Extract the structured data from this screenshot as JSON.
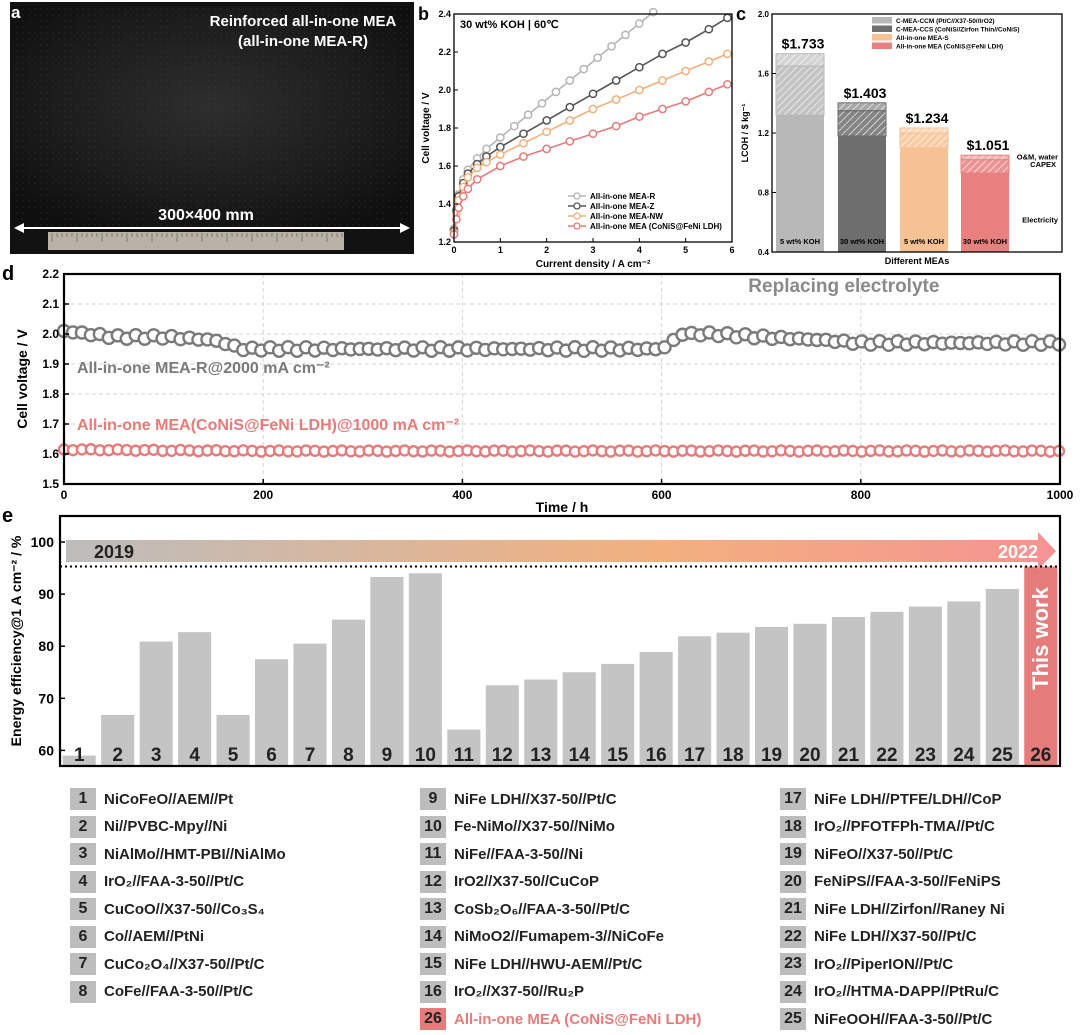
{
  "panel_labels": {
    "a": "a",
    "b": "b",
    "c": "c",
    "d": "d",
    "e": "e"
  },
  "panel_a": {
    "title_line1": "Reinforced all-in-one MEA",
    "title_line2": "(all-in-one MEA-R)",
    "dimension": "300×400 mm",
    "colors": {
      "background": "#1b1b1b",
      "ruler": "#b9b3a6"
    }
  },
  "chart_data": [
    {
      "panel": "b",
      "type": "line",
      "title": "30 wt% KOH | 60℃",
      "xlabel": "Current density / A cm⁻²",
      "ylabel": "Cell voltage / V",
      "xlim": [
        0,
        6
      ],
      "ylim": [
        1.2,
        2.4
      ],
      "xticks": [
        0,
        1,
        2,
        3,
        4,
        5,
        6
      ],
      "yticks": [
        1.2,
        1.4,
        1.6,
        1.8,
        2.0,
        2.2,
        2.4
      ],
      "legend_position": "bottom-right",
      "series": [
        {
          "name": "All-in-one MEA-R",
          "color": "#b5b5b5",
          "x": [
            0,
            0.05,
            0.1,
            0.2,
            0.3,
            0.5,
            0.7,
            1.0,
            1.3,
            1.6,
            1.9,
            2.2,
            2.5,
            2.8,
            3.1,
            3.4,
            3.7,
            4.0,
            4.3
          ],
          "y": [
            1.27,
            1.37,
            1.45,
            1.53,
            1.58,
            1.64,
            1.69,
            1.75,
            1.81,
            1.87,
            1.93,
            1.99,
            2.05,
            2.11,
            2.17,
            2.23,
            2.29,
            2.35,
            2.41
          ]
        },
        {
          "name": "All-in-one MEA-Z",
          "color": "#555555",
          "x": [
            0,
            0.05,
            0.1,
            0.2,
            0.3,
            0.5,
            0.7,
            1.0,
            1.5,
            2.0,
            2.5,
            3.0,
            3.5,
            4.0,
            4.5,
            5.0,
            5.5,
            5.9
          ],
          "y": [
            1.26,
            1.36,
            1.44,
            1.51,
            1.56,
            1.61,
            1.65,
            1.7,
            1.77,
            1.84,
            1.91,
            1.98,
            2.05,
            2.12,
            2.19,
            2.25,
            2.32,
            2.38
          ]
        },
        {
          "name": "All-in-one MEA-NW",
          "color": "#f2b07c",
          "x": [
            0,
            0.05,
            0.1,
            0.2,
            0.3,
            0.5,
            0.7,
            1.0,
            1.5,
            2.0,
            2.5,
            3.0,
            3.5,
            4.0,
            4.5,
            5.0,
            5.5,
            5.9
          ],
          "y": [
            1.25,
            1.35,
            1.42,
            1.49,
            1.54,
            1.59,
            1.62,
            1.66,
            1.72,
            1.78,
            1.84,
            1.9,
            1.95,
            2.0,
            2.05,
            2.1,
            2.15,
            2.19
          ]
        },
        {
          "name": "All-in-one MEA (CoNiS@FeNi LDH)",
          "color": "#e57b7b",
          "x": [
            0,
            0.05,
            0.1,
            0.2,
            0.3,
            0.5,
            1.0,
            1.5,
            2.0,
            2.5,
            3.0,
            3.5,
            4.0,
            4.5,
            5.0,
            5.5,
            5.9
          ],
          "y": [
            1.24,
            1.32,
            1.38,
            1.44,
            1.48,
            1.53,
            1.6,
            1.65,
            1.69,
            1.73,
            1.77,
            1.81,
            1.86,
            1.9,
            1.94,
            1.99,
            2.03
          ]
        }
      ]
    },
    {
      "panel": "c",
      "type": "bar",
      "xlabel": "Different MEAs",
      "ylabel": "LCOH / $ kg⁻¹",
      "ylim": [
        0.4,
        2.0
      ],
      "yticks": [
        0.4,
        0.8,
        1.2,
        1.6,
        2.0
      ],
      "categories": [
        "5 wt% KOH",
        "30 wt% KOH",
        "5 wt% KOH",
        "30 wt% KOH"
      ],
      "totals_labels": [
        "$1.733",
        "$1.403",
        "$1.234",
        "$1.051"
      ],
      "totals": [
        1.733,
        1.403,
        1.234,
        1.051
      ],
      "electricity": [
        1.32,
        1.18,
        1.1,
        0.93
      ],
      "capex": [
        0.33,
        0.17,
        0.1,
        0.09
      ],
      "om_water": [
        0.083,
        0.053,
        0.034,
        0.031
      ],
      "colors": [
        "#b8b8b8",
        "#6e6e6e",
        "#f6c293",
        "#e98080"
      ],
      "component_labels": {
        "om": "O&M, water",
        "capex": "CAPEX",
        "electricity": "Electricity"
      },
      "legend": [
        {
          "name": "C-MEA-CCM (Pt/C//X37-50//IrO2)",
          "color": "#b8b8b8"
        },
        {
          "name": "C-MEA-CCS (CoNiS//Zirfon Thin//CoNiS)",
          "color": "#6e6e6e"
        },
        {
          "name": "All-in-one MEA-S",
          "color": "#f6c293"
        },
        {
          "name": "All-in-one MEA (CoNiS@FeNi LDH)",
          "color": "#e98080"
        }
      ],
      "legend_position": "top"
    },
    {
      "panel": "d",
      "type": "scatter",
      "xlabel": "Time / h",
      "ylabel": "Cell voltage / V",
      "xlim": [
        0,
        1000
      ],
      "ylim": [
        1.5,
        2.2
      ],
      "xticks": [
        0,
        200,
        400,
        600,
        800,
        1000
      ],
      "yticks": [
        1.5,
        1.6,
        1.7,
        1.8,
        1.9,
        2.0,
        2.1,
        2.2
      ],
      "grid": true,
      "annotation": "Replacing electrolyte",
      "series": [
        {
          "name": "All-in-one MEA-R@2000 mA cm⁻²",
          "color": "#7a7a7a",
          "x": [
            0,
            50,
            100,
            150,
            180,
            250,
            300,
            400,
            500,
            600,
            605,
            620,
            650,
            700,
            760,
            800,
            850,
            900,
            950,
            1000
          ],
          "y": [
            2.01,
            1.99,
            1.99,
            1.98,
            1.95,
            1.95,
            1.95,
            1.95,
            1.95,
            1.95,
            1.96,
            2.0,
            2.0,
            1.99,
            1.98,
            1.97,
            1.97,
            1.97,
            1.97,
            1.97
          ]
        },
        {
          "name": "All-in-one MEA(CoNiS@FeNi LDH)@1000 mA cm⁻²",
          "color": "#e57b7b",
          "x": [
            0,
            100,
            200,
            300,
            400,
            500,
            600,
            700,
            800,
            900,
            1000
          ],
          "y": [
            1.615,
            1.612,
            1.61,
            1.61,
            1.61,
            1.61,
            1.61,
            1.61,
            1.61,
            1.61,
            1.61
          ]
        }
      ]
    },
    {
      "panel": "e",
      "type": "bar",
      "ylabel": "Energy efficiency@1 A cm⁻² / %",
      "ylim": [
        57,
        105
      ],
      "yticks": [
        60,
        70,
        80,
        90,
        100
      ],
      "start_label": "2019",
      "end_label": "2022",
      "highlight_text": "This work",
      "reference_line": 95.3,
      "categories": [
        "1",
        "2",
        "3",
        "4",
        "5",
        "6",
        "7",
        "8",
        "9",
        "10",
        "11",
        "12",
        "13",
        "14",
        "15",
        "16",
        "17",
        "18",
        "19",
        "20",
        "21",
        "22",
        "23",
        "24",
        "25",
        "26"
      ],
      "values": [
        59,
        66.8,
        80.9,
        82.7,
        66.8,
        77.5,
        80.5,
        85.1,
        93.3,
        94.0,
        64.0,
        72.5,
        73.6,
        75.0,
        76.6,
        78.9,
        81.9,
        82.6,
        83.7,
        84.3,
        85.6,
        86.6,
        87.6,
        88.6,
        91.0,
        95.3
      ],
      "colors": {
        "bar": "#c4c4c4",
        "highlight": "#e57b7b"
      }
    }
  ],
  "references": [
    {
      "num": "1",
      "label": "NiCoFeO//AEM//Pt"
    },
    {
      "num": "2",
      "label": "Ni//PVBC-Mpy//Ni"
    },
    {
      "num": "3",
      "label": "NiAlMo//HMT-PBI//NiAlMo"
    },
    {
      "num": "4",
      "label": "IrO₂//FAA-3-50//Pt/C"
    },
    {
      "num": "5",
      "label": "CuCoO//X37-50//Co₃S₄"
    },
    {
      "num": "6",
      "label": "Co//AEM//PtNi"
    },
    {
      "num": "7",
      "label": "CuCo₂O₄//X37-50//Pt/C"
    },
    {
      "num": "8",
      "label": "CoFe//FAA-3-50//Pt/C"
    },
    {
      "num": "9",
      "label": "NiFe LDH//X37-50//Pt/C"
    },
    {
      "num": "10",
      "label": "Fe-NiMo//X37-50//NiMo"
    },
    {
      "num": "11",
      "label": "NiFe//FAA-3-50//Ni"
    },
    {
      "num": "12",
      "label": "IrO2//X37-50//CuCoP"
    },
    {
      "num": "13",
      "label": "CoSb₂O₆//FAA-3-50//Pt/C"
    },
    {
      "num": "14",
      "label": "NiMoO2//Fumapem-3//NiCoFe"
    },
    {
      "num": "15",
      "label": "NiFe LDH//HWU-AEM//Pt/C"
    },
    {
      "num": "16",
      "label": "IrO₂//X37-50//Ru₂P"
    },
    {
      "num": "26",
      "label": "All-in-one MEA (CoNiS@FeNi LDH)",
      "highlight": true
    },
    {
      "num": "17",
      "label": "NiFe LDH//PTFE/LDH//CoP"
    },
    {
      "num": "18",
      "label": "IrO₂//PFOTFPh-TMA//Pt/C"
    },
    {
      "num": "19",
      "label": "NiFeO//X37-50//Pt/C"
    },
    {
      "num": "20",
      "label": "FeNiPS//FAA-3-50//FeNiPS"
    },
    {
      "num": "21",
      "label": "NiFe LDH//Zirfon//Raney Ni"
    },
    {
      "num": "22",
      "label": "NiFe LDH//X37-50//Pt/C"
    },
    {
      "num": "23",
      "label": "IrO₂//PiperION//Pt/C"
    },
    {
      "num": "24",
      "label": "IrO₂//HTMA-DAPP//PtRu/C"
    },
    {
      "num": "25",
      "label": "NiFeOOH//FAA-3-50//Pt/C"
    }
  ]
}
